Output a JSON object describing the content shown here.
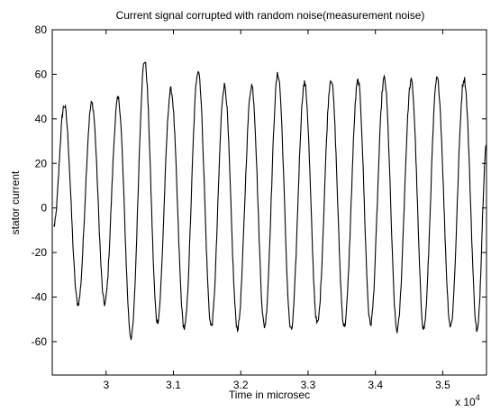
{
  "chart_data": {
    "type": "line",
    "title": "Current signal corrupted with random noise(measurement noise)",
    "xlabel": "Time in microsec",
    "ylabel": "stator current",
    "x_exponent_label": "x 10",
    "x_exponent_power": "4",
    "xlim": [
      2.92,
      3.565
    ],
    "ylim": [
      -75,
      80
    ],
    "xticks": [
      3,
      3.1,
      3.2,
      3.3,
      3.4,
      3.5
    ],
    "xtick_labels": [
      "3",
      "3.1",
      "3.2",
      "3.3",
      "3.4",
      "3.5"
    ],
    "yticks": [
      -60,
      -40,
      -20,
      0,
      20,
      40,
      60,
      80
    ],
    "ytick_labels": [
      "-60",
      "-40",
      "-20",
      "0",
      "20",
      "40",
      "60",
      "80"
    ],
    "grid": false,
    "series": [
      {
        "color": "#000000",
        "peaks": [
          [
            2.9225,
            -8
          ],
          [
            2.9378,
            46
          ],
          [
            2.9583,
            -43
          ],
          [
            2.9788,
            47
          ],
          [
            2.9978,
            -43
          ],
          [
            3.0178,
            49
          ],
          [
            3.0372,
            -58
          ],
          [
            3.0572,
            66
          ],
          [
            3.0762,
            -51
          ],
          [
            3.0962,
            53
          ],
          [
            3.1162,
            -54
          ],
          [
            3.1367,
            62
          ],
          [
            3.1562,
            -53
          ],
          [
            3.1757,
            55
          ],
          [
            3.1952,
            -54
          ],
          [
            3.2162,
            55
          ],
          [
            3.2352,
            -53
          ],
          [
            3.2552,
            60
          ],
          [
            3.2747,
            -55
          ],
          [
            3.2947,
            56
          ],
          [
            3.3137,
            -52
          ],
          [
            3.3342,
            58
          ],
          [
            3.3537,
            -53
          ],
          [
            3.3742,
            57
          ],
          [
            3.3927,
            -52
          ],
          [
            3.4132,
            58
          ],
          [
            3.4322,
            -55
          ],
          [
            3.4532,
            57
          ],
          [
            3.4717,
            -54
          ],
          [
            3.4917,
            58
          ],
          [
            3.5117,
            -53
          ],
          [
            3.5317,
            58
          ],
          [
            3.5512,
            -55
          ],
          [
            3.565,
            28
          ]
        ]
      }
    ]
  }
}
